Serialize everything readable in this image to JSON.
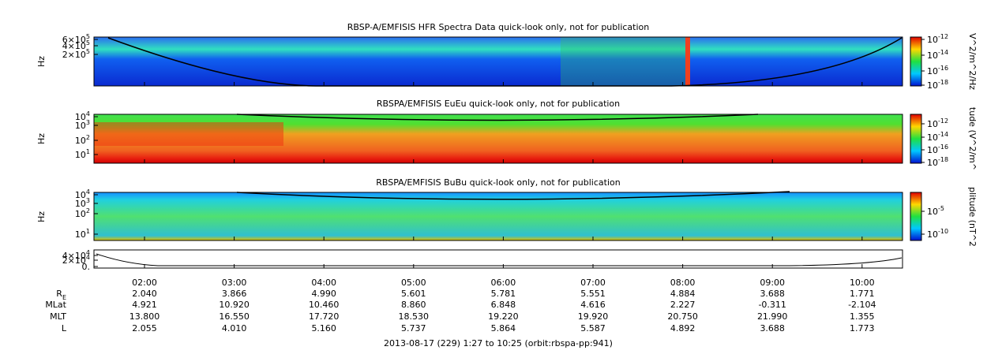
{
  "panels": [
    {
      "title": "RBSP-A/EMFISIS  HFR Spectra Data quick-look only, not for publication",
      "y_label": "Hz",
      "yticks": [
        {
          "base": "6×10",
          "exp": "5"
        },
        {
          "base": "4×10",
          "exp": "5"
        },
        {
          "base": "2×10",
          "exp": "5"
        }
      ],
      "colorbar_label": "V^2/m^2/Hz",
      "colorbar_ticks": [
        {
          "base": "10",
          "exp": "-12"
        },
        {
          "base": "10",
          "exp": "-14"
        },
        {
          "base": "10",
          "exp": "-16"
        },
        {
          "base": "10",
          "exp": "-18"
        }
      ]
    },
    {
      "title": "RBSPA/EMFISIS  EuEu quick-look only, not for publication",
      "y_label": "Hz",
      "yticks": [
        {
          "base": "10",
          "exp": "4"
        },
        {
          "base": "10",
          "exp": "3"
        },
        {
          "base": "10",
          "exp": "2"
        },
        {
          "base": "10",
          "exp": "1"
        }
      ],
      "colorbar_label": "tude (V^2/m^",
      "colorbar_ticks": [
        {
          "base": "10",
          "exp": "-12"
        },
        {
          "base": "10",
          "exp": "-14"
        },
        {
          "base": "10",
          "exp": "-16"
        },
        {
          "base": "10",
          "exp": "-18"
        }
      ]
    },
    {
      "title": "RBSPA/EMFISIS  BuBu quick-look only, not for publication",
      "y_label": "Hz",
      "yticks": [
        {
          "base": "10",
          "exp": "4"
        },
        {
          "base": "10",
          "exp": "3"
        },
        {
          "base": "10",
          "exp": "2"
        },
        {
          "base": "10",
          "exp": "1"
        }
      ],
      "colorbar_label": "plitude (nT^2",
      "colorbar_ticks": [
        {
          "base": "10",
          "exp": "-5"
        },
        {
          "base": "10",
          "exp": "-10"
        }
      ]
    },
    {
      "yticks": [
        {
          "base": "4×10",
          "exp": "4"
        },
        {
          "base": "2×10",
          "exp": "4"
        },
        {
          "base": "0.",
          "exp": ""
        }
      ]
    }
  ],
  "x_ticks": [
    "02:00",
    "03:00",
    "04:00",
    "05:00",
    "06:00",
    "07:00",
    "08:00",
    "09:00",
    "10:00"
  ],
  "ephemeris": [
    {
      "label": {
        "base": "R",
        "sub": "E"
      },
      "values": [
        "2.040",
        "3.866",
        "4.990",
        "5.601",
        "5.781",
        "5.551",
        "4.884",
        "3.688",
        "1.771"
      ]
    },
    {
      "label": {
        "base": "MLat",
        "sub": ""
      },
      "values": [
        "4.921",
        "10.920",
        "10.460",
        "8.860",
        "6.848",
        "4.616",
        "2.227",
        "-0.311",
        "-2.104"
      ]
    },
    {
      "label": {
        "base": "MLT",
        "sub": ""
      },
      "values": [
        "13.800",
        "16.550",
        "17.720",
        "18.530",
        "19.220",
        "19.920",
        "20.750",
        "21.990",
        "1.355"
      ]
    },
    {
      "label": {
        "base": "L",
        "sub": ""
      },
      "values": [
        "2.055",
        "4.010",
        "5.160",
        "5.737",
        "5.864",
        "5.587",
        "4.892",
        "3.688",
        "1.773"
      ]
    }
  ],
  "footer": "2013-08-17 (229) 1:27 to 10:25 (orbit:rbspa-pp:941)"
}
